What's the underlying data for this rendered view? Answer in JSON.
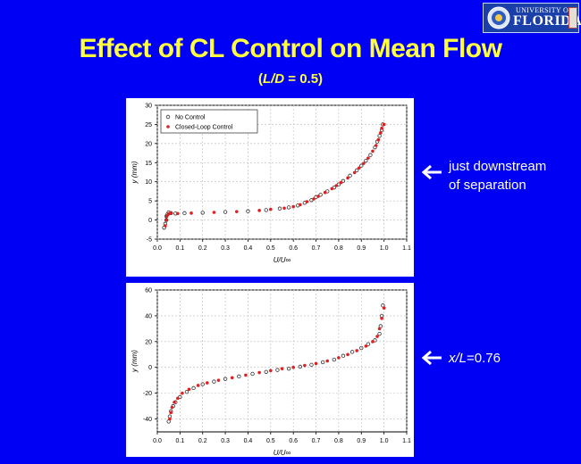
{
  "header": {
    "logo": {
      "line1": "UNIVERSITY OF",
      "line2": "FLORIDA"
    },
    "title": "Effect of CL Control on Mean Flow",
    "subtitle": {
      "open": "(",
      "var": "L/D",
      "rest": " = 0.5)"
    }
  },
  "colors": {
    "background": "#0000f5",
    "title": "#ffff40",
    "no_control": "#333333",
    "closed_loop": "#e02020"
  },
  "annotations": {
    "top": {
      "line1": "just downstream",
      "line2": "of separation"
    },
    "bottom": {
      "var": "x/L",
      "rest": "=0.76"
    }
  },
  "chart_data": [
    {
      "type": "scatter",
      "xlabel": "U/U∞",
      "ylabel": "y (mm)",
      "xlim": [
        0.0,
        1.1
      ],
      "ylim": [
        -5,
        30
      ],
      "xticks": [
        "0.0",
        "0.1",
        "0.2",
        "0.3",
        "0.4",
        "0.5",
        "0.6",
        "0.7",
        "0.8",
        "0.9",
        "1.0",
        "1.1"
      ],
      "yticks": [
        "-5",
        "0",
        "5",
        "10",
        "15",
        "20",
        "25",
        "30"
      ],
      "grid": true,
      "legend": "top-left",
      "series": [
        {
          "name": "No Control",
          "marker": "open-circle",
          "x": [
            0.03,
            0.035,
            0.04,
            0.04,
            0.045,
            0.05,
            0.06,
            0.08,
            0.12,
            0.2,
            0.3,
            0.4,
            0.48,
            0.54,
            0.58,
            0.62,
            0.65,
            0.68,
            0.7,
            0.72,
            0.75,
            0.78,
            0.8,
            0.82,
            0.85,
            0.88,
            0.9,
            0.92,
            0.94,
            0.96,
            0.97,
            0.98,
            0.99,
            0.995
          ],
          "y": [
            -2,
            -1,
            0,
            1,
            1.5,
            2,
            1.8,
            1.7,
            1.8,
            1.9,
            2.1,
            2.3,
            2.6,
            3,
            3.3,
            3.8,
            4.5,
            5.2,
            6,
            6.6,
            7.5,
            8.5,
            9.3,
            10.2,
            11.6,
            13,
            14.2,
            15.5,
            17,
            19,
            20.5,
            22,
            23.5,
            25
          ]
        },
        {
          "name": "Closed-Loop Control",
          "marker": "filled-circle",
          "x": [
            0.035,
            0.04,
            0.042,
            0.05,
            0.06,
            0.09,
            0.15,
            0.25,
            0.35,
            0.45,
            0.5,
            0.56,
            0.6,
            0.63,
            0.66,
            0.69,
            0.71,
            0.74,
            0.77,
            0.79,
            0.81,
            0.84,
            0.87,
            0.89,
            0.91,
            0.93,
            0.95,
            0.965,
            0.975,
            0.985,
            0.99,
            1.0
          ],
          "y": [
            -1.5,
            0,
            1,
            1.6,
            1.8,
            1.7,
            1.8,
            2,
            2.2,
            2.5,
            2.8,
            3.1,
            3.5,
            4,
            4.8,
            5.5,
            6.2,
            7.2,
            8.2,
            9,
            9.8,
            11,
            12.4,
            13.6,
            14.8,
            16.2,
            18,
            19.5,
            21,
            22.8,
            24,
            25
          ]
        }
      ]
    },
    {
      "type": "scatter",
      "xlabel": "U/U∞",
      "ylabel": "y (mm)",
      "xlim": [
        0.0,
        1.1
      ],
      "ylim": [
        -50,
        60
      ],
      "xticks": [
        "0.0",
        "0.1",
        "0.2",
        "0.3",
        "0.4",
        "0.5",
        "0.6",
        "0.7",
        "0.8",
        "0.9",
        "1.0",
        "1.1"
      ],
      "yticks": [
        "-40",
        "-20",
        "0",
        "20",
        "40",
        "60"
      ],
      "grid": true,
      "legend": "none",
      "series": [
        {
          "name": "No Control",
          "marker": "open-circle",
          "x": [
            0.05,
            0.055,
            0.06,
            0.07,
            0.08,
            0.1,
            0.13,
            0.16,
            0.2,
            0.25,
            0.3,
            0.36,
            0.42,
            0.48,
            0.53,
            0.58,
            0.63,
            0.68,
            0.73,
            0.78,
            0.82,
            0.86,
            0.9,
            0.93,
            0.96,
            0.98,
            0.985,
            0.99,
            0.995
          ],
          "y": [
            -42,
            -38,
            -34,
            -30,
            -27,
            -23,
            -19,
            -16,
            -13,
            -11,
            -9,
            -7,
            -5,
            -3.5,
            -2,
            -1,
            0.5,
            2,
            4,
            6,
            9,
            12,
            15,
            18,
            21,
            26,
            32,
            40,
            48
          ]
        },
        {
          "name": "Closed-Loop Control",
          "marker": "filled-circle",
          "x": [
            0.055,
            0.06,
            0.065,
            0.075,
            0.09,
            0.11,
            0.14,
            0.18,
            0.22,
            0.27,
            0.33,
            0.39,
            0.45,
            0.5,
            0.55,
            0.6,
            0.65,
            0.7,
            0.75,
            0.8,
            0.84,
            0.88,
            0.92,
            0.95,
            0.97,
            0.98,
            0.99,
            1.0
          ],
          "y": [
            -40,
            -35,
            -31,
            -27,
            -24,
            -20,
            -17,
            -14,
            -12,
            -10,
            -8,
            -6,
            -4,
            -2.5,
            -1,
            0,
            1.5,
            3,
            5,
            7.5,
            10,
            13,
            16.5,
            20,
            24,
            30,
            38,
            46
          ]
        }
      ]
    }
  ]
}
